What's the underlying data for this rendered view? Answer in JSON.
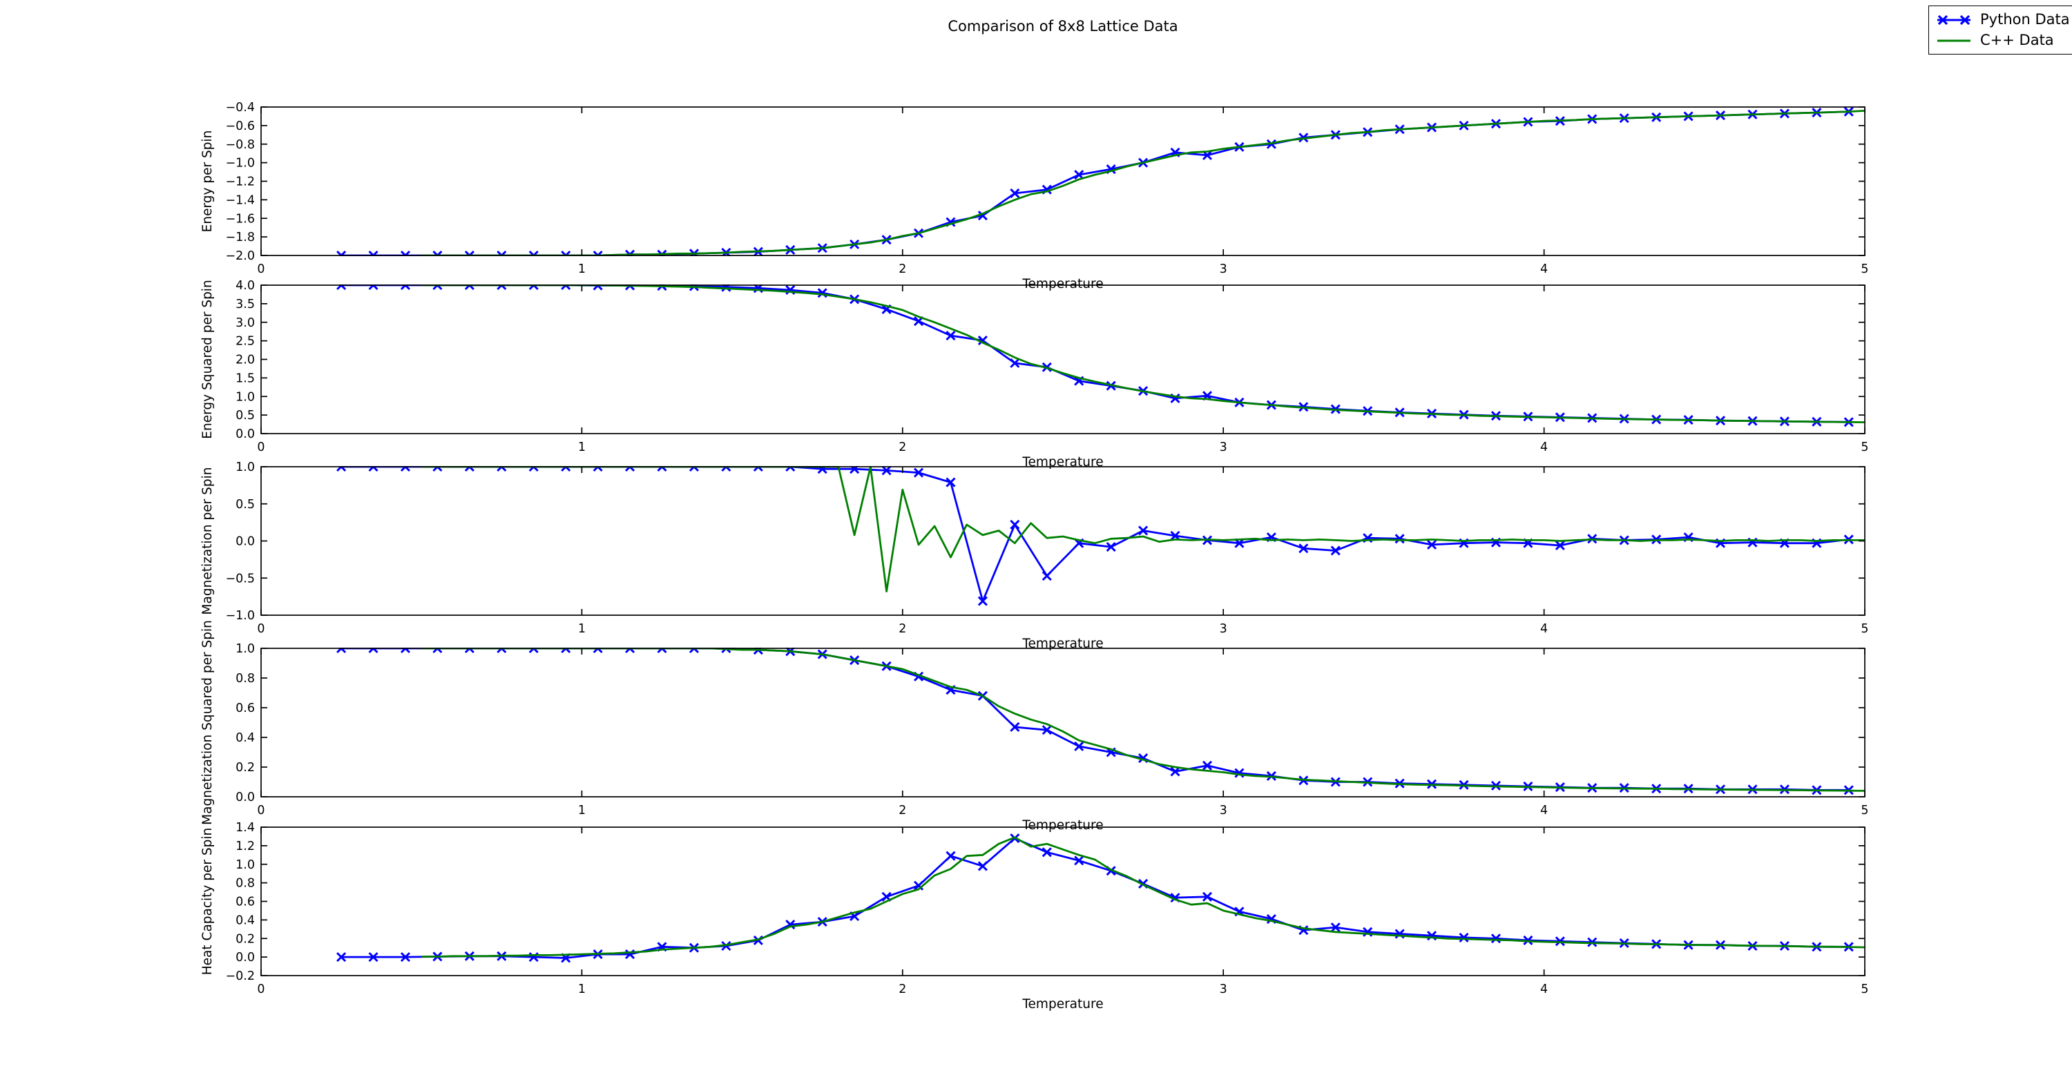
{
  "figure": {
    "title": "Comparison of 8x8 Lattice Data",
    "background": "#ffffff"
  },
  "legend": {
    "items": [
      {
        "label": "Python Data",
        "color": "#0000ff",
        "marker": "x"
      },
      {
        "label": "C++ Data",
        "color": "#008000",
        "marker": "none"
      }
    ]
  },
  "chart_data": {
    "type": "line",
    "title": "Comparison of 8x8 Lattice Data",
    "xlabel": "Temperature",
    "legend_entries": [
      "Python Data",
      "C++ Data"
    ],
    "colors": {
      "python": "#0000ff",
      "cpp": "#008000"
    },
    "x_python": [
      0.25,
      0.35,
      0.45,
      0.55,
      0.65,
      0.75,
      0.85,
      0.95,
      1.05,
      1.15,
      1.25,
      1.35,
      1.45,
      1.55,
      1.65,
      1.75,
      1.85,
      1.95,
      2.05,
      2.15,
      2.25,
      2.35,
      2.45,
      2.55,
      2.65,
      2.75,
      2.85,
      2.95,
      3.05,
      3.15,
      3.25,
      3.35,
      3.45,
      3.55,
      3.65,
      3.75,
      3.85,
      3.95,
      4.05,
      4.15,
      4.25,
      4.35,
      4.45,
      4.55,
      4.65,
      4.75,
      4.85,
      4.95
    ],
    "x_cpp": [
      0.5,
      0.55,
      0.6,
      0.65,
      0.7,
      0.75,
      0.8,
      0.85,
      0.9,
      0.95,
      1.0,
      1.05,
      1.1,
      1.15,
      1.2,
      1.25,
      1.3,
      1.35,
      1.4,
      1.45,
      1.5,
      1.55,
      1.6,
      1.65,
      1.7,
      1.75,
      1.8,
      1.85,
      1.9,
      1.95,
      2.0,
      2.05,
      2.1,
      2.15,
      2.2,
      2.25,
      2.3,
      2.35,
      2.4,
      2.45,
      2.5,
      2.55,
      2.6,
      2.65,
      2.7,
      2.75,
      2.8,
      2.85,
      2.9,
      2.95,
      3.0,
      3.05,
      3.1,
      3.15,
      3.2,
      3.25,
      3.3,
      3.35,
      3.4,
      3.45,
      3.5,
      3.55,
      3.6,
      3.65,
      3.7,
      3.75,
      3.8,
      3.85,
      3.9,
      3.95,
      4.0,
      4.05,
      4.1,
      4.15,
      4.2,
      4.25,
      4.3,
      4.35,
      4.4,
      4.45,
      4.5,
      4.55,
      4.6,
      4.65,
      4.7,
      4.75,
      4.8,
      4.85,
      4.9,
      4.95,
      5.0
    ],
    "subplots": [
      {
        "id": "energy",
        "ylabel": "Energy per Spin",
        "xlim": [
          0,
          5
        ],
        "ylim": [
          -2.0,
          -0.4
        ],
        "xticks": [
          0,
          1,
          2,
          3,
          4,
          5
        ],
        "yticks": [
          -2.0,
          -1.8,
          -1.6,
          -1.4,
          -1.2,
          -1.0,
          -0.8,
          -0.6,
          -0.4
        ],
        "python_y": [
          -2.0,
          -2.0,
          -2.0,
          -2.0,
          -2.0,
          -2.0,
          -2.0,
          -2.0,
          -2.0,
          -1.99,
          -1.99,
          -1.98,
          -1.97,
          -1.96,
          -1.94,
          -1.92,
          -1.88,
          -1.83,
          -1.76,
          -1.64,
          -1.57,
          -1.33,
          -1.29,
          -1.13,
          -1.07,
          -1.0,
          -0.89,
          -0.92,
          -0.83,
          -0.8,
          -0.73,
          -0.7,
          -0.67,
          -0.64,
          -0.62,
          -0.6,
          -0.58,
          -0.56,
          -0.55,
          -0.53,
          -0.52,
          -0.51,
          -0.5,
          -0.49,
          -0.48,
          -0.47,
          -0.46,
          -0.45
        ],
        "cpp_y": [
          -2.0,
          -2.0,
          -2.0,
          -2.0,
          -2.0,
          -2.0,
          -2.0,
          -2.0,
          -2.0,
          -2.0,
          -2.0,
          -2.0,
          -1.995,
          -1.99,
          -1.99,
          -1.985,
          -1.98,
          -1.98,
          -1.975,
          -1.97,
          -1.96,
          -1.955,
          -1.95,
          -1.94,
          -1.93,
          -1.92,
          -1.9,
          -1.88,
          -1.86,
          -1.83,
          -1.79,
          -1.76,
          -1.71,
          -1.66,
          -1.61,
          -1.55,
          -1.47,
          -1.4,
          -1.34,
          -1.31,
          -1.25,
          -1.18,
          -1.13,
          -1.09,
          -1.04,
          -1.0,
          -0.96,
          -0.92,
          -0.89,
          -0.88,
          -0.85,
          -0.83,
          -0.81,
          -0.79,
          -0.76,
          -0.74,
          -0.72,
          -0.7,
          -0.68,
          -0.67,
          -0.65,
          -0.64,
          -0.63,
          -0.62,
          -0.61,
          -0.6,
          -0.59,
          -0.58,
          -0.57,
          -0.56,
          -0.55,
          -0.545,
          -0.54,
          -0.53,
          -0.525,
          -0.52,
          -0.515,
          -0.51,
          -0.505,
          -0.5,
          -0.495,
          -0.49,
          -0.485,
          -0.48,
          -0.475,
          -0.47,
          -0.465,
          -0.46,
          -0.455,
          -0.45,
          -0.44
        ]
      },
      {
        "id": "energy-squared",
        "ylabel": "Energy Squared per Spin",
        "xlim": [
          0,
          5
        ],
        "ylim": [
          0.0,
          4.0
        ],
        "xticks": [
          0,
          1,
          2,
          3,
          4,
          5
        ],
        "yticks": [
          0.0,
          0.5,
          1.0,
          1.5,
          2.0,
          2.5,
          3.0,
          3.5,
          4.0
        ],
        "python_y": [
          4.0,
          4.0,
          4.0,
          4.0,
          4.0,
          4.0,
          4.0,
          4.0,
          3.99,
          3.99,
          3.98,
          3.97,
          3.95,
          3.92,
          3.87,
          3.79,
          3.62,
          3.35,
          3.03,
          2.64,
          2.51,
          1.9,
          1.79,
          1.42,
          1.29,
          1.15,
          0.95,
          1.02,
          0.84,
          0.77,
          0.72,
          0.66,
          0.61,
          0.57,
          0.54,
          0.51,
          0.48,
          0.46,
          0.44,
          0.42,
          0.4,
          0.38,
          0.37,
          0.35,
          0.34,
          0.33,
          0.32,
          0.31
        ],
        "cpp_y": [
          4.0,
          4.0,
          4.0,
          4.0,
          4.0,
          4.0,
          4.0,
          4.0,
          4.0,
          4.0,
          4.0,
          4.0,
          3.99,
          3.985,
          3.98,
          3.97,
          3.96,
          3.95,
          3.93,
          3.91,
          3.89,
          3.87,
          3.85,
          3.82,
          3.79,
          3.75,
          3.69,
          3.62,
          3.54,
          3.44,
          3.33,
          3.15,
          3.0,
          2.83,
          2.66,
          2.45,
          2.26,
          2.05,
          1.88,
          1.77,
          1.63,
          1.5,
          1.4,
          1.31,
          1.22,
          1.14,
          1.07,
          1.0,
          0.95,
          0.93,
          0.88,
          0.84,
          0.8,
          0.77,
          0.73,
          0.7,
          0.67,
          0.64,
          0.62,
          0.6,
          0.58,
          0.56,
          0.54,
          0.53,
          0.51,
          0.5,
          0.48,
          0.47,
          0.46,
          0.45,
          0.44,
          0.43,
          0.42,
          0.41,
          0.4,
          0.39,
          0.385,
          0.38,
          0.37,
          0.365,
          0.36,
          0.35,
          0.345,
          0.34,
          0.335,
          0.33,
          0.325,
          0.32,
          0.315,
          0.31,
          0.305
        ]
      },
      {
        "id": "magnetization",
        "ylabel": "Magnetization per Spin",
        "xlim": [
          0,
          5
        ],
        "ylim": [
          -1.0,
          1.0
        ],
        "xticks": [
          0,
          1,
          2,
          3,
          4,
          5
        ],
        "yticks": [
          -1.0,
          -0.5,
          0.0,
          0.5,
          1.0
        ],
        "python_y": [
          1.0,
          1.0,
          1.0,
          1.0,
          1.0,
          1.0,
          1.0,
          1.0,
          1.0,
          1.0,
          1.0,
          1.0,
          1.0,
          1.0,
          1.0,
          0.97,
          0.97,
          0.95,
          0.92,
          0.79,
          -0.81,
          0.22,
          -0.47,
          -0.03,
          -0.08,
          0.14,
          0.07,
          0.01,
          -0.03,
          0.05,
          -0.1,
          -0.13,
          0.04,
          0.03,
          -0.05,
          -0.03,
          -0.02,
          -0.03,
          -0.06,
          0.03,
          0.01,
          0.02,
          0.05,
          -0.03,
          -0.02,
          -0.03,
          -0.03,
          0.02
        ],
        "cpp_y": [
          1.0,
          1.0,
          1.0,
          1.0,
          1.0,
          1.0,
          1.0,
          1.0,
          1.0,
          1.0,
          1.0,
          1.0,
          1.0,
          1.0,
          1.0,
          1.0,
          1.0,
          1.0,
          1.0,
          1.0,
          1.0,
          1.0,
          1.0,
          1.0,
          1.0,
          1.0,
          1.0,
          0.08,
          1.0,
          -0.68,
          0.69,
          -0.05,
          0.2,
          -0.22,
          0.22,
          0.08,
          0.14,
          -0.03,
          0.24,
          0.04,
          0.06,
          0.01,
          -0.03,
          0.03,
          0.04,
          0.06,
          -0.01,
          0.02,
          0.01,
          0.02,
          0.01,
          0.02,
          0.03,
          0.01,
          0.02,
          0.01,
          0.02,
          0.01,
          0.0,
          0.01,
          0.02,
          0.01,
          0.01,
          0.02,
          0.01,
          0.0,
          0.01,
          0.01,
          0.02,
          0.01,
          0.01,
          0.0,
          0.01,
          0.02,
          0.01,
          0.01,
          0.0,
          0.01,
          0.01,
          0.02,
          0.01,
          0.0,
          0.01,
          0.01,
          0.0,
          0.01,
          0.01,
          0.0,
          0.01,
          0.01,
          0.01
        ]
      },
      {
        "id": "magnetization-squared",
        "ylabel": "Magnetization Squared per Spin",
        "xlim": [
          0,
          5
        ],
        "ylim": [
          0.0,
          1.0
        ],
        "xticks": [
          0,
          1,
          2,
          3,
          4,
          5
        ],
        "yticks": [
          0.0,
          0.2,
          0.4,
          0.6,
          0.8,
          1.0
        ],
        "python_y": [
          1.0,
          1.0,
          1.0,
          1.0,
          1.0,
          1.0,
          1.0,
          1.0,
          1.0,
          1.0,
          1.0,
          1.0,
          1.0,
          0.99,
          0.98,
          0.96,
          0.92,
          0.88,
          0.81,
          0.72,
          0.68,
          0.47,
          0.45,
          0.34,
          0.3,
          0.26,
          0.17,
          0.21,
          0.16,
          0.14,
          0.11,
          0.1,
          0.1,
          0.09,
          0.085,
          0.08,
          0.075,
          0.07,
          0.065,
          0.06,
          0.06,
          0.055,
          0.055,
          0.05,
          0.05,
          0.05,
          0.045,
          0.045
        ],
        "cpp_y": [
          1.0,
          1.0,
          1.0,
          1.0,
          1.0,
          1.0,
          1.0,
          1.0,
          1.0,
          1.0,
          1.0,
          1.0,
          1.0,
          1.0,
          1.0,
          1.0,
          1.0,
          1.0,
          1.0,
          0.995,
          0.99,
          0.99,
          0.985,
          0.98,
          0.97,
          0.96,
          0.94,
          0.92,
          0.9,
          0.88,
          0.86,
          0.82,
          0.78,
          0.74,
          0.72,
          0.68,
          0.61,
          0.56,
          0.52,
          0.49,
          0.44,
          0.38,
          0.35,
          0.32,
          0.28,
          0.25,
          0.22,
          0.2,
          0.185,
          0.175,
          0.165,
          0.15,
          0.14,
          0.135,
          0.125,
          0.115,
          0.11,
          0.105,
          0.1,
          0.095,
          0.09,
          0.085,
          0.082,
          0.08,
          0.078,
          0.075,
          0.072,
          0.07,
          0.068,
          0.066,
          0.064,
          0.062,
          0.06,
          0.058,
          0.057,
          0.056,
          0.055,
          0.054,
          0.052,
          0.051,
          0.05,
          0.049,
          0.048,
          0.047,
          0.046,
          0.045,
          0.044,
          0.043,
          0.042,
          0.041,
          0.04
        ]
      },
      {
        "id": "heat-capacity",
        "ylabel": "Heat Capacity per Spin",
        "xlim": [
          0,
          5
        ],
        "ylim": [
          -0.2,
          1.4
        ],
        "xticks": [
          0,
          1,
          2,
          3,
          4,
          5
        ],
        "yticks": [
          -0.2,
          0.0,
          0.2,
          0.4,
          0.6,
          0.8,
          1.0,
          1.2,
          1.4
        ],
        "python_y": [
          0.0,
          0.0,
          0.0,
          0.005,
          0.01,
          0.01,
          0.0,
          -0.01,
          0.03,
          0.03,
          0.11,
          0.1,
          0.12,
          0.18,
          0.35,
          0.38,
          0.44,
          0.65,
          0.77,
          1.09,
          0.98,
          1.28,
          1.13,
          1.04,
          0.93,
          0.79,
          0.64,
          0.65,
          0.49,
          0.41,
          0.29,
          0.32,
          0.27,
          0.25,
          0.23,
          0.21,
          0.2,
          0.18,
          0.17,
          0.16,
          0.15,
          0.14,
          0.13,
          0.13,
          0.12,
          0.12,
          0.11,
          0.11
        ],
        "cpp_y": [
          0.005,
          0.005,
          0.01,
          0.01,
          0.01,
          0.015,
          0.015,
          0.02,
          0.02,
          0.025,
          0.03,
          0.035,
          0.04,
          0.05,
          0.06,
          0.08,
          0.09,
          0.1,
          0.11,
          0.13,
          0.16,
          0.19,
          0.25,
          0.33,
          0.35,
          0.38,
          0.43,
          0.48,
          0.52,
          0.6,
          0.68,
          0.73,
          0.88,
          0.95,
          1.09,
          1.1,
          1.22,
          1.29,
          1.19,
          1.22,
          1.16,
          1.1,
          1.05,
          0.94,
          0.87,
          0.78,
          0.7,
          0.62,
          0.565,
          0.58,
          0.5,
          0.46,
          0.42,
          0.39,
          0.35,
          0.31,
          0.29,
          0.27,
          0.26,
          0.25,
          0.24,
          0.23,
          0.22,
          0.21,
          0.2,
          0.195,
          0.19,
          0.185,
          0.18,
          0.17,
          0.165,
          0.16,
          0.155,
          0.15,
          0.148,
          0.145,
          0.14,
          0.138,
          0.135,
          0.132,
          0.13,
          0.128,
          0.125,
          0.122,
          0.12,
          0.118,
          0.115,
          0.112,
          0.11,
          0.108,
          0.105
        ]
      }
    ]
  }
}
